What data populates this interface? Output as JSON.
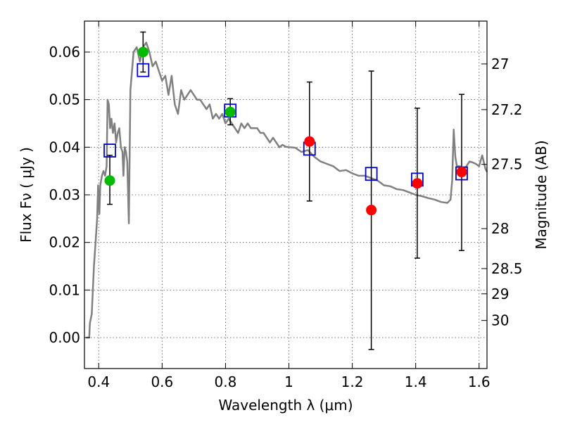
{
  "chart_data": {
    "type": "scatter",
    "title": "",
    "xlabel": "Wavelength  λ (μm)",
    "ylabel": "Flux  Fν  ( μJy )",
    "y2label": "Magnitude (AB)",
    "xlim": [
      0.355,
      1.625
    ],
    "ylim": [
      -0.0065,
      0.0665
    ],
    "grid": true,
    "x_ticks": [
      0.4,
      0.6,
      0.8,
      1.0,
      1.2,
      1.4,
      1.6
    ],
    "x_tick_labels": [
      "0.4",
      "0.6",
      "0.8",
      "1",
      "1.2",
      "1.4",
      "1.6"
    ],
    "y_ticks": [
      0.0,
      0.01,
      0.02,
      0.03,
      0.04,
      0.05,
      0.06
    ],
    "y_tick_labels": [
      "0.00",
      "0.01",
      "0.02",
      "0.03",
      "0.04",
      "0.05",
      "0.06"
    ],
    "y2_ticks": [
      {
        "label": "27",
        "flux": 0.0575
      },
      {
        "label": "27.2",
        "flux": 0.0479
      },
      {
        "label": "27.5",
        "flux": 0.0364
      },
      {
        "label": "28",
        "flux": 0.0229
      },
      {
        "label": "28.5",
        "flux": 0.0145
      },
      {
        "label": "29",
        "flux": 0.0092
      },
      {
        "label": "30",
        "flux": 0.0036
      }
    ],
    "colors": {
      "model": "#808080",
      "model_photometry": "#0000cc",
      "optical": "#00bb00",
      "infrared": "#ff0000",
      "errorbar": "#000000"
    },
    "series": [
      {
        "type": "line",
        "points": [
          [
            0.36,
            0.0
          ],
          [
            0.37,
            0.0
          ],
          [
            0.372,
            0.003
          ],
          [
            0.378,
            0.005
          ],
          [
            0.385,
            0.015
          ],
          [
            0.39,
            0.02
          ],
          [
            0.395,
            0.025
          ],
          [
            0.398,
            0.032
          ],
          [
            0.402,
            0.026
          ],
          [
            0.405,
            0.032
          ],
          [
            0.41,
            0.034
          ],
          [
            0.415,
            0.035
          ],
          [
            0.42,
            0.034
          ],
          [
            0.425,
            0.036
          ],
          [
            0.428,
            0.05
          ],
          [
            0.432,
            0.049
          ],
          [
            0.436,
            0.044
          ],
          [
            0.44,
            0.046
          ],
          [
            0.445,
            0.043
          ],
          [
            0.45,
            0.045
          ],
          [
            0.455,
            0.041
          ],
          [
            0.46,
            0.043
          ],
          [
            0.465,
            0.044
          ],
          [
            0.47,
            0.04
          ],
          [
            0.475,
            0.039
          ],
          [
            0.478,
            0.034
          ],
          [
            0.482,
            0.04
          ],
          [
            0.486,
            0.039
          ],
          [
            0.49,
            0.037
          ],
          [
            0.495,
            0.024
          ],
          [
            0.5,
            0.052
          ],
          [
            0.51,
            0.06
          ],
          [
            0.52,
            0.061
          ],
          [
            0.53,
            0.058
          ],
          [
            0.54,
            0.061
          ],
          [
            0.55,
            0.062
          ],
          [
            0.56,
            0.06
          ],
          [
            0.57,
            0.057
          ],
          [
            0.58,
            0.058
          ],
          [
            0.59,
            0.056
          ],
          [
            0.6,
            0.054
          ],
          [
            0.61,
            0.055
          ],
          [
            0.62,
            0.051
          ],
          [
            0.63,
            0.055
          ],
          [
            0.64,
            0.049
          ],
          [
            0.65,
            0.047
          ],
          [
            0.66,
            0.052
          ],
          [
            0.67,
            0.05
          ],
          [
            0.68,
            0.051
          ],
          [
            0.69,
            0.052
          ],
          [
            0.7,
            0.051
          ],
          [
            0.71,
            0.05
          ],
          [
            0.72,
            0.05
          ],
          [
            0.73,
            0.049
          ],
          [
            0.74,
            0.048
          ],
          [
            0.75,
            0.049
          ],
          [
            0.76,
            0.046
          ],
          [
            0.77,
            0.047
          ],
          [
            0.78,
            0.046
          ],
          [
            0.79,
            0.047
          ],
          [
            0.8,
            0.045
          ],
          [
            0.81,
            0.046
          ],
          [
            0.82,
            0.045
          ],
          [
            0.83,
            0.044
          ],
          [
            0.84,
            0.043
          ],
          [
            0.85,
            0.045
          ],
          [
            0.86,
            0.044
          ],
          [
            0.87,
            0.045
          ],
          [
            0.88,
            0.044
          ],
          [
            0.89,
            0.044
          ],
          [
            0.9,
            0.044
          ],
          [
            0.91,
            0.043
          ],
          [
            0.92,
            0.043
          ],
          [
            0.93,
            0.042
          ],
          [
            0.94,
            0.041
          ],
          [
            0.95,
            0.042
          ],
          [
            0.96,
            0.041
          ],
          [
            0.97,
            0.04
          ],
          [
            0.98,
            0.0405
          ],
          [
            0.99,
            0.0401
          ],
          [
            1.0,
            0.04
          ],
          [
            1.02,
            0.0399
          ],
          [
            1.04,
            0.039
          ],
          [
            1.06,
            0.0394
          ],
          [
            1.08,
            0.038
          ],
          [
            1.1,
            0.037
          ],
          [
            1.12,
            0.0365
          ],
          [
            1.14,
            0.036
          ],
          [
            1.16,
            0.035
          ],
          [
            1.18,
            0.0352
          ],
          [
            1.2,
            0.0345
          ],
          [
            1.22,
            0.034
          ],
          [
            1.24,
            0.034
          ],
          [
            1.26,
            0.0335
          ],
          [
            1.28,
            0.033
          ],
          [
            1.3,
            0.032
          ],
          [
            1.32,
            0.0318
          ],
          [
            1.34,
            0.0312
          ],
          [
            1.36,
            0.031
          ],
          [
            1.38,
            0.0305
          ],
          [
            1.4,
            0.03
          ],
          [
            1.42,
            0.0297
          ],
          [
            1.44,
            0.0293
          ],
          [
            1.46,
            0.029
          ],
          [
            1.48,
            0.0285
          ],
          [
            1.5,
            0.0283
          ],
          [
            1.51,
            0.029
          ],
          [
            1.515,
            0.033
          ],
          [
            1.52,
            0.0437
          ],
          [
            1.525,
            0.038
          ],
          [
            1.53,
            0.036
          ],
          [
            1.54,
            0.036
          ],
          [
            1.55,
            0.035
          ],
          [
            1.56,
            0.036
          ],
          [
            1.57,
            0.037
          ],
          [
            1.58,
            0.0368
          ],
          [
            1.59,
            0.0365
          ],
          [
            1.6,
            0.036
          ],
          [
            1.61,
            0.0383
          ],
          [
            1.62,
            0.0355
          ],
          [
            1.625,
            0.0348
          ]
        ]
      },
      {
        "type": "scatter",
        "marker": "square",
        "points": [
          [
            0.435,
            0.0393
          ],
          [
            0.54,
            0.0562
          ],
          [
            0.815,
            0.0477
          ],
          [
            1.065,
            0.0397
          ],
          [
            1.26,
            0.0344
          ],
          [
            1.405,
            0.0332
          ],
          [
            1.545,
            0.0345
          ]
        ]
      },
      {
        "type": "scatter",
        "marker": "circle",
        "points": [
          [
            0.435,
            0.033
          ],
          [
            0.54,
            0.06
          ],
          [
            0.815,
            0.0474
          ]
        ],
        "errors": [
          [
            0.028,
            0.0383
          ],
          [
            0.0558,
            0.0642
          ],
          [
            0.0447,
            0.0502
          ]
        ]
      },
      {
        "type": "scatter",
        "marker": "circle",
        "points": [
          [
            1.065,
            0.0412
          ],
          [
            1.26,
            0.0268
          ],
          [
            1.405,
            0.0324
          ],
          [
            1.545,
            0.0348
          ]
        ],
        "errors": [
          [
            0.0287,
            0.0537
          ],
          [
            -0.0025,
            0.056
          ],
          [
            0.0167,
            0.0482
          ],
          [
            0.0183,
            0.0511
          ]
        ]
      }
    ]
  }
}
